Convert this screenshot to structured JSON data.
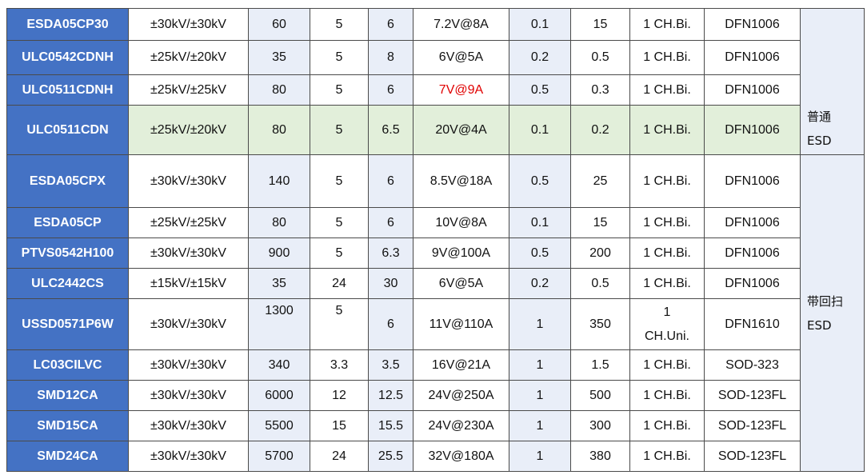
{
  "table": {
    "rows": [
      [
        "ESDA05CP30",
        "±30kV/±30kV",
        "60",
        "5",
        "6",
        "7.2V@8A",
        "0.1",
        "15",
        "1 CH.Bi.",
        "DFN1006"
      ],
      [
        "ULC0542CDNH",
        "±25kV/±20kV",
        "35",
        "5",
        "8",
        "6V@5A",
        "0.2",
        "0.5",
        "1 CH.Bi.",
        "DFN1006"
      ],
      [
        "ULC0511CDNH",
        "±25kV/±25kV",
        "80",
        "5",
        "6",
        "7V@9A",
        "0.5",
        "0.3",
        "1 CH.Bi.",
        "DFN1006"
      ],
      [
        "ULC0511CDN",
        "±25kV/±20kV",
        "80",
        "5",
        "6.5",
        "20V@4A",
        "0.1",
        "0.2",
        "1 CH.Bi.",
        "DFN1006"
      ],
      [
        "ESDA05CPX",
        "±30kV/±30kV",
        "140",
        "5",
        "6",
        "8.5V@18A",
        "0.5",
        "25",
        "1 CH.Bi.",
        "DFN1006"
      ],
      [
        "ESDA05CP",
        "±25kV/±25kV",
        "80",
        "5",
        "6",
        "10V@8A",
        "0.1",
        "15",
        "1 CH.Bi.",
        "DFN1006"
      ],
      [
        "PTVS0542H100",
        "±30kV/±30kV",
        "900",
        "5",
        "6.3",
        "9V@100A",
        "0.5",
        "200",
        "1 CH.Bi.",
        "DFN1006"
      ],
      [
        "ULC2442CS",
        "±15kV/±15kV",
        "35",
        "24",
        "30",
        "6V@5A",
        "0.2",
        "0.5",
        "1 CH.Bi.",
        "DFN1006"
      ],
      [
        "USSD0571P6W",
        "±30kV/±30kV",
        "1300",
        "5",
        "6",
        "11V@110A",
        "1",
        "350",
        "1 CH.Uni.",
        "DFN1610"
      ],
      [
        "LC03CILVC",
        "±30kV/±30kV",
        "340",
        "3.3",
        "3.5",
        "16V@21A",
        "1",
        "1.5",
        "1 CH.Bi.",
        "SOD-323"
      ],
      [
        "SMD12CA",
        "±30kV/±30kV",
        "6000",
        "12",
        "12.5",
        "24V@250A",
        "1",
        "500",
        "1 CH.Bi.",
        "SOD-123FL"
      ],
      [
        "SMD15CA",
        "±30kV/±30kV",
        "5500",
        "15",
        "15.5",
        "24V@230A",
        "1",
        "300",
        "1 CH.Bi.",
        "SOD-123FL"
      ],
      [
        "SMD24CA",
        "±30kV/±30kV",
        "5700",
        "24",
        "25.5",
        "32V@180A",
        "1",
        "380",
        "1 CH.Bi.",
        "SOD-123FL"
      ]
    ],
    "groups": [
      [
        "普通",
        "ESD"
      ],
      [
        "带回扫",
        "ESD"
      ]
    ]
  }
}
